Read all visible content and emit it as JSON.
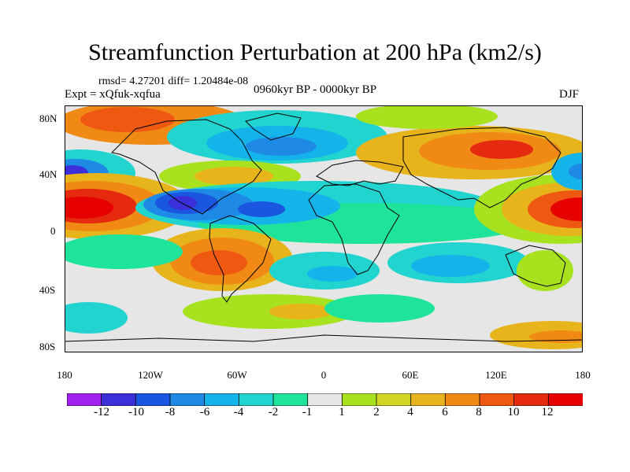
{
  "title": "Streamfunction Perturbation at 200 hPa (km2/s)",
  "stats": "rmsd= 4.27201 diff= 1.20484e-08",
  "expt": "Expt = xQfuk-xqfua",
  "period": "0960kyr BP - 0000kyr BP",
  "season": "DJF",
  "lat_labels": [
    "80N",
    "40N",
    "0",
    "40S",
    "80S"
  ],
  "lon_labels": [
    "180",
    "120W",
    "60W",
    "0",
    "60E",
    "120E",
    "180"
  ],
  "colorbar": {
    "labels": [
      "-12",
      "-10",
      "-8",
      "-6",
      "-4",
      "-2",
      "-1",
      "1",
      "2",
      "4",
      "6",
      "8",
      "10",
      "12"
    ],
    "colors": [
      "#a020f0",
      "#3a2fd8",
      "#1a56e0",
      "#1e8ae6",
      "#14b4ea",
      "#22d4d0",
      "#1ee39a",
      "#e6e6e6",
      "#a8e21e",
      "#d0d424",
      "#e8b41c",
      "#f08a14",
      "#ee5810",
      "#e62a10",
      "#e60000"
    ]
  },
  "map": {
    "region": "global",
    "lon_range": [
      -180,
      180
    ],
    "lat_range": [
      -90,
      90
    ],
    "anomalies": [
      {
        "lon": -170,
        "lat": 40,
        "value": -10
      },
      {
        "lon": -165,
        "lat": 20,
        "value": 12
      },
      {
        "lon": -135,
        "lat": 72,
        "value": 7
      },
      {
        "lon": -100,
        "lat": 20,
        "value": -12
      },
      {
        "lon": -60,
        "lat": 18,
        "value": -9
      },
      {
        "lon": -85,
        "lat": -20,
        "value": 9
      },
      {
        "lon": -10,
        "lat": 62,
        "value": -7
      },
      {
        "lon": 50,
        "lat": 52,
        "value": 8
      },
      {
        "lon": 40,
        "lat": 25,
        "value": -5
      },
      {
        "lon": 170,
        "lat": 18,
        "value": 12
      },
      {
        "lon": 178,
        "lat": 42,
        "value": -8
      },
      {
        "lon": 150,
        "lat": -65,
        "value": 7
      },
      {
        "lon": -50,
        "lat": -60,
        "value": 5
      }
    ]
  }
}
